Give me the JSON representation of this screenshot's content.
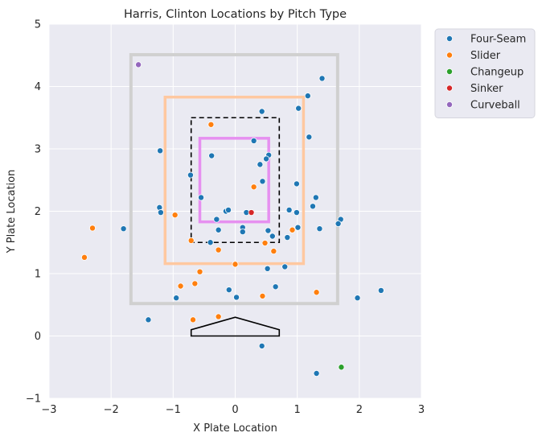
{
  "chart_data": {
    "type": "scatter",
    "title": "Harris, Clinton Locations by Pitch Type",
    "xlabel": "X Plate Location",
    "ylabel": "Y Plate Location",
    "xlim": [
      -3,
      3
    ],
    "ylim": [
      -1,
      5
    ],
    "xticks": [
      "−3",
      "−2",
      "−1",
      "0",
      "1",
      "2",
      "3"
    ],
    "yticks": [
      "−1",
      "0",
      "1",
      "2",
      "3",
      "4",
      "5"
    ],
    "grid": true,
    "legend_placement": "outside upper right",
    "series": [
      {
        "name": "Four-Seam",
        "color": "#1f77b4",
        "points": [
          [
            1.4,
            4.13
          ],
          [
            1.17,
            3.85
          ],
          [
            0.43,
            3.6
          ],
          [
            1.02,
            3.65
          ],
          [
            0.3,
            3.13
          ],
          [
            1.19,
            3.19
          ],
          [
            -1.21,
            2.97
          ],
          [
            -0.38,
            2.89
          ],
          [
            0.54,
            2.9
          ],
          [
            0.5,
            2.84
          ],
          [
            0.4,
            2.75
          ],
          [
            -0.72,
            2.58
          ],
          [
            0.44,
            2.48
          ],
          [
            0.99,
            2.44
          ],
          [
            -0.55,
            2.22
          ],
          [
            1.3,
            2.22
          ],
          [
            -1.22,
            2.06
          ],
          [
            -1.2,
            1.98
          ],
          [
            1.25,
            2.08
          ],
          [
            0.87,
            2.02
          ],
          [
            0.99,
            1.98
          ],
          [
            -0.15,
            2.0
          ],
          [
            -0.11,
            2.02
          ],
          [
            0.18,
            1.98
          ],
          [
            1.7,
            1.87
          ],
          [
            1.66,
            1.8
          ],
          [
            -0.3,
            1.87
          ],
          [
            -1.8,
            1.72
          ],
          [
            0.12,
            1.74
          ],
          [
            0.12,
            1.67
          ],
          [
            1.01,
            1.74
          ],
          [
            1.36,
            1.72
          ],
          [
            -0.27,
            1.7
          ],
          [
            0.53,
            1.69
          ],
          [
            0.6,
            1.6
          ],
          [
            0.84,
            1.58
          ],
          [
            -0.4,
            1.5
          ],
          [
            0.8,
            1.11
          ],
          [
            0.52,
            1.08
          ],
          [
            -0.1,
            0.74
          ],
          [
            0.65,
            0.79
          ],
          [
            -0.95,
            0.61
          ],
          [
            0.02,
            0.62
          ],
          [
            1.97,
            0.61
          ],
          [
            2.35,
            0.73
          ],
          [
            -1.4,
            0.26
          ],
          [
            0.43,
            -0.16
          ],
          [
            1.31,
            -0.6
          ]
        ]
      },
      {
        "name": "Slider",
        "color": "#ff7f0e",
        "points": [
          [
            -0.39,
            3.39
          ],
          [
            0.3,
            2.39
          ],
          [
            -0.97,
            1.94
          ],
          [
            -2.3,
            1.73
          ],
          [
            0.92,
            1.7
          ],
          [
            0.48,
            1.49
          ],
          [
            -0.71,
            1.53
          ],
          [
            -0.27,
            1.38
          ],
          [
            0.62,
            1.36
          ],
          [
            -2.43,
            1.26
          ],
          [
            0.0,
            1.15
          ],
          [
            -0.57,
            1.03
          ],
          [
            -0.88,
            0.8
          ],
          [
            -0.65,
            0.84
          ],
          [
            1.31,
            0.7
          ],
          [
            0.44,
            0.64
          ],
          [
            -0.68,
            0.26
          ],
          [
            -0.27,
            0.31
          ]
        ]
      },
      {
        "name": "Changeup",
        "color": "#2ca02c",
        "points": [
          [
            1.71,
            -0.5
          ]
        ]
      },
      {
        "name": "Sinker",
        "color": "#d62728",
        "points": [
          [
            0.26,
            1.98
          ]
        ]
      },
      {
        "name": "Curveball",
        "color": "#9467bd",
        "points": [
          [
            -1.56,
            4.35
          ]
        ]
      }
    ],
    "overlays": [
      {
        "kind": "rect",
        "x": [
          -1.68,
          1.65
        ],
        "y": [
          0.52,
          4.51
        ],
        "color": "#d0d0d0",
        "style": "solid"
      },
      {
        "kind": "rect",
        "x": [
          -1.13,
          1.1
        ],
        "y": [
          1.16,
          3.83
        ],
        "color": "#ffc8a0",
        "style": "solid"
      },
      {
        "kind": "rect",
        "x": [
          -0.71,
          0.71
        ],
        "y": [
          1.5,
          3.5
        ],
        "color": "#000000",
        "style": "dashed"
      },
      {
        "kind": "rect",
        "x": [
          -0.57,
          0.54
        ],
        "y": [
          1.83,
          3.17
        ],
        "color": "#e690f0",
        "style": "solid"
      },
      {
        "kind": "plate",
        "x": [
          -0.71,
          0.71
        ],
        "y": [
          0.0,
          0.3
        ],
        "color": "#000000",
        "style": "solid"
      }
    ]
  }
}
